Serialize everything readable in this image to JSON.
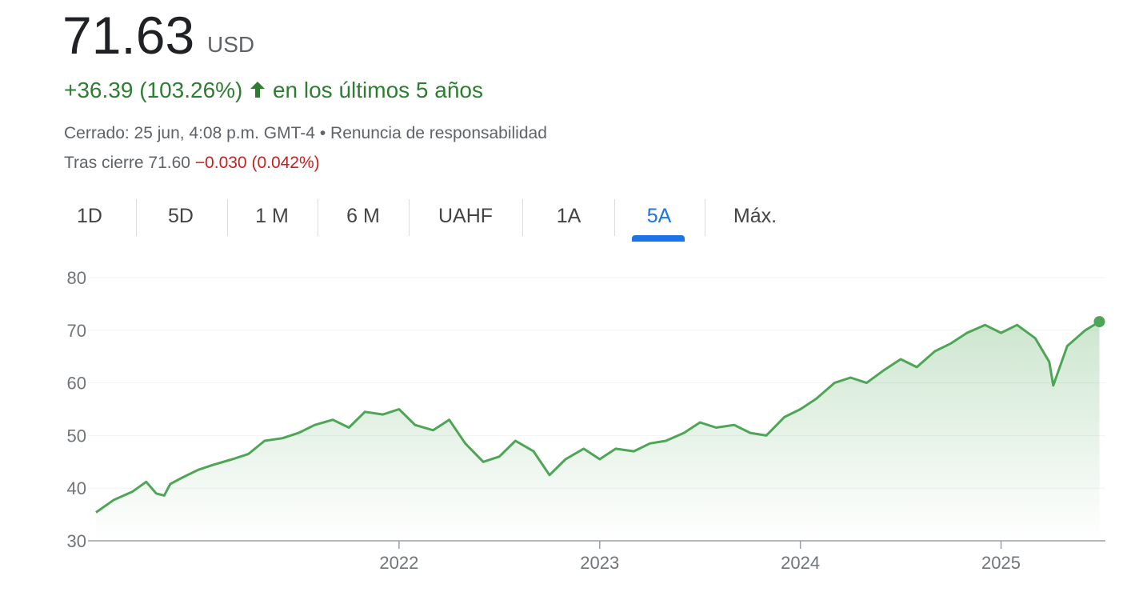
{
  "header": {
    "price": "71.63",
    "currency": "USD",
    "change": "+36.39 (103.26%)",
    "period": "en los últimos 5 años",
    "closed": "Cerrado: 25 jun, 4:08 p.m. GMT-4",
    "separator": "•",
    "disclaimer": "Renuncia de responsabilidad",
    "after_hours": "Tras cierre 71.60",
    "after_hours_change": "−0.030 (0.042%)"
  },
  "tabs": {
    "items": [
      "1D",
      "5D",
      "1 M",
      "6 M",
      "UAHF",
      "1A",
      "5A",
      "Máx."
    ],
    "active": 6
  },
  "chart_data": {
    "type": "line",
    "x": [
      2020.49,
      2020.58,
      2020.67,
      2020.74,
      2020.79,
      2020.83,
      2020.86,
      2020.92,
      2021.0,
      2021.08,
      2021.17,
      2021.25,
      2021.33,
      2021.42,
      2021.5,
      2021.58,
      2021.67,
      2021.75,
      2021.83,
      2021.92,
      2022.0,
      2022.08,
      2022.17,
      2022.25,
      2022.33,
      2022.42,
      2022.5,
      2022.58,
      2022.67,
      2022.75,
      2022.83,
      2022.92,
      2023.0,
      2023.08,
      2023.17,
      2023.25,
      2023.33,
      2023.42,
      2023.5,
      2023.58,
      2023.67,
      2023.75,
      2023.83,
      2023.92,
      2024.0,
      2024.08,
      2024.17,
      2024.25,
      2024.33,
      2024.42,
      2024.5,
      2024.58,
      2024.67,
      2024.75,
      2024.83,
      2024.92,
      2025.0,
      2025.08,
      2025.17,
      2025.24,
      2025.26,
      2025.33,
      2025.42,
      2025.49
    ],
    "series": [
      {
        "name": "Precio",
        "color": "#4ea556",
        "values": [
          35.4,
          37.8,
          39.3,
          41.2,
          39.0,
          38.6,
          40.8,
          42.0,
          43.5,
          44.5,
          45.5,
          46.5,
          49.0,
          49.5,
          50.5,
          52.0,
          53.0,
          51.5,
          54.5,
          54.0,
          55.0,
          52.0,
          51.0,
          53.0,
          48.5,
          45.0,
          46.0,
          49.0,
          47.0,
          42.5,
          45.5,
          47.5,
          45.5,
          47.5,
          47.0,
          48.5,
          49.0,
          50.5,
          52.5,
          51.5,
          52.0,
          50.5,
          50.0,
          53.5,
          55.0,
          57.0,
          60.0,
          61.0,
          60.0,
          62.5,
          64.5,
          63.0,
          66.0,
          67.5,
          69.5,
          71.0,
          69.5,
          71.0,
          68.5,
          64.0,
          59.5,
          67.0,
          70.0,
          71.63
        ]
      }
    ],
    "xlim": [
      2020.45,
      2025.52
    ],
    "xticks": [
      2022,
      2023,
      2024,
      2025
    ],
    "ylim": [
      30,
      80
    ],
    "yticks": [
      30,
      40,
      50,
      60,
      70,
      80
    ],
    "grid": true
  }
}
